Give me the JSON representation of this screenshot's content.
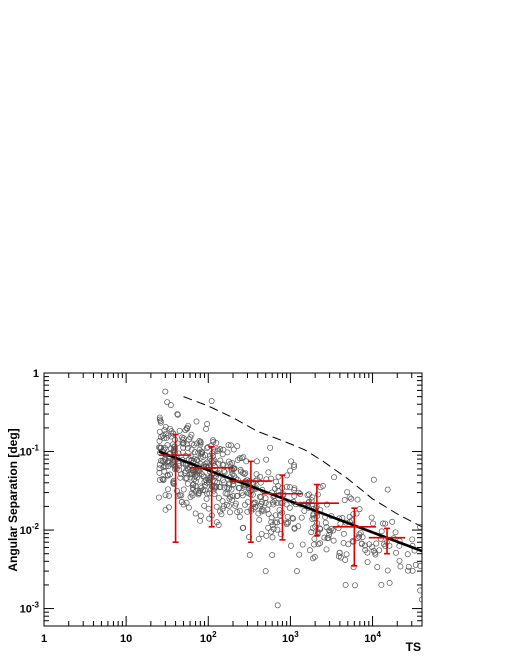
{
  "chart_data": {
    "type": "scatter",
    "title": "",
    "xlabel": "TS",
    "ylabel": "Angular Separation [deg]",
    "xscale": "log",
    "yscale": "log",
    "xlim": [
      1,
      40000
    ],
    "ylim": [
      0.0006,
      1
    ],
    "grid": false,
    "legend": "none",
    "xticks": [
      {
        "value": 1,
        "base": "1",
        "exp": ""
      },
      {
        "value": 10,
        "base": "10",
        "exp": ""
      },
      {
        "value": 100,
        "base": "10",
        "exp": "2"
      },
      {
        "value": 1000,
        "base": "10",
        "exp": "3"
      },
      {
        "value": 10000,
        "base": "10",
        "exp": "4"
      }
    ],
    "yticks": [
      {
        "value": 1,
        "base": "1",
        "exp": ""
      },
      {
        "value": 0.1,
        "base": "10",
        "exp": "-1"
      },
      {
        "value": 0.01,
        "base": "10",
        "exp": "-2"
      },
      {
        "value": 0.001,
        "base": "10",
        "exp": "-3"
      }
    ],
    "colors": {
      "points": "#555555",
      "binned": "#dd0000",
      "fit": "#000000",
      "dashed": "#000000"
    },
    "scatter_generation": {
      "count": 620,
      "ts_min": 25,
      "ts_max": 40000,
      "ts_density_slope": -1.3,
      "fit_at_ts25": 0.1,
      "fit_slope": -0.45,
      "log10_scatter_sigma": 0.27,
      "seed": 1234
    },
    "series": [
      {
        "kind": "binned_errorbars",
        "x": [
          40,
          110,
          330,
          800,
          2100,
          6000,
          15000
        ],
        "y": [
          0.09,
          0.062,
          0.042,
          0.029,
          0.022,
          0.011,
          0.008
        ],
        "x_err_low": [
          25,
          60,
          180,
          450,
          1150,
          3300,
          9000
        ],
        "x_err_high": [
          62,
          200,
          600,
          1400,
          3900,
          11000,
          25000
        ],
        "y_err_low": [
          0.007,
          0.011,
          0.007,
          0.0075,
          0.0085,
          0.0035,
          0.005
        ],
        "y_err_high": [
          0.165,
          0.115,
          0.075,
          0.05,
          0.038,
          0.019,
          0.0105
        ]
      },
      {
        "kind": "fit_line",
        "x": [
          25,
          40000
        ],
        "y": [
          0.1,
          0.0054
        ]
      },
      {
        "kind": "dashed_line",
        "x": [
          50,
          100,
          200,
          400,
          700,
          1000,
          1500,
          2500,
          5000,
          10000,
          20000,
          40000
        ],
        "y": [
          0.5,
          0.38,
          0.27,
          0.18,
          0.145,
          0.125,
          0.105,
          0.075,
          0.045,
          0.025,
          0.016,
          0.011
        ]
      }
    ],
    "annotated_points": {
      "x": [
        30,
        35,
        42,
        110,
        55,
        500,
        700,
        1200,
        600,
        320,
        4700,
        38000,
        38000
      ],
      "y": [
        0.58,
        0.39,
        0.3,
        0.44,
        0.2,
        0.003,
        0.0011,
        0.003,
        0.0048,
        0.0048,
        0.002,
        0.0035,
        0.0017
      ]
    }
  }
}
